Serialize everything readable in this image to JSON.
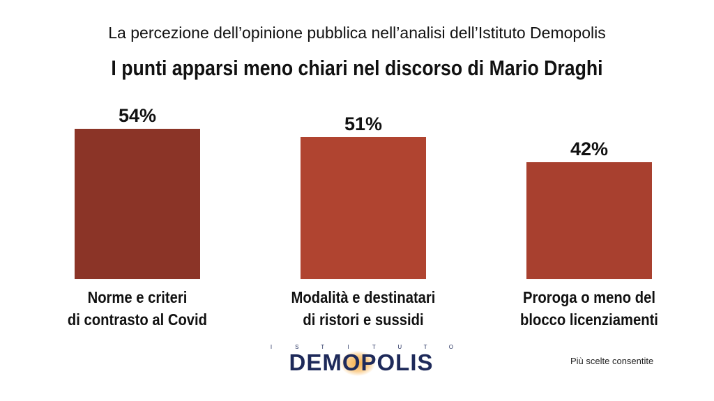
{
  "header": {
    "subtitle": "La percezione dell’opinione pubblica nell’analisi dell’Istituto Demopolis",
    "title": "I punti apparsi meno chiari nel discorso di Mario Draghi"
  },
  "chart_data": {
    "type": "bar",
    "title": "I punti apparsi meno chiari nel discorso di Mario Draghi",
    "subtitle": "La percezione dell’opinione pubblica nell’analisi dell’Istituto Demopolis",
    "categories": [
      [
        "Norme e criteri",
        "di contrasto al Covid"
      ],
      [
        "Modalità  e destinatari",
        "di ristori e sussidi"
      ],
      [
        "Proroga o meno del",
        "blocco licenziamenti"
      ]
    ],
    "values": [
      54,
      51,
      42
    ],
    "value_labels": [
      "54%",
      "51%",
      "42%"
    ],
    "unit": "%",
    "ylim": [
      0,
      54
    ],
    "grid": false,
    "colors": [
      "#8b3427",
      "#b04430",
      "#a8402f"
    ]
  },
  "logo": {
    "top_text": "ISTITUTO",
    "word": "DEMOPOLIS"
  },
  "footnote": "Più scelte consentite"
}
